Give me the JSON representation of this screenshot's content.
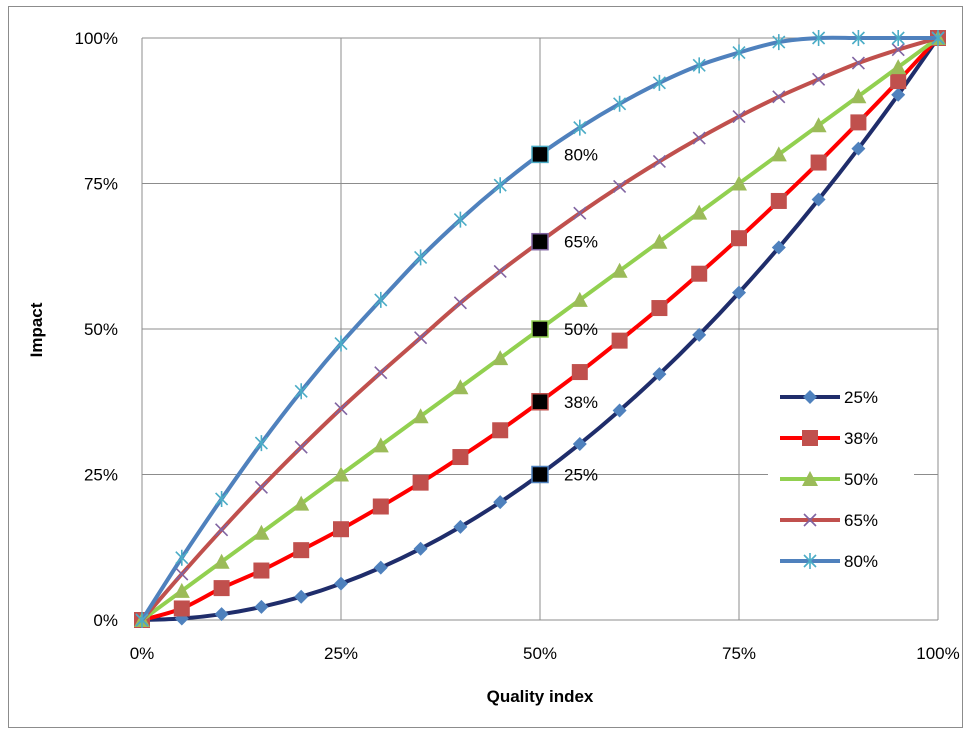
{
  "chart_data": {
    "type": "line",
    "title": "",
    "xlabel": "Quality index",
    "ylabel": "Impact",
    "xlim": [
      0,
      1
    ],
    "ylim": [
      0,
      1
    ],
    "x_ticks": [
      "0%",
      "25%",
      "50%",
      "75%",
      "100%"
    ],
    "y_ticks": [
      "0%",
      "25%",
      "50%",
      "75%",
      "100%"
    ],
    "grid": true,
    "legend_position": "right",
    "x": [
      0,
      0.05,
      0.1,
      0.15,
      0.2,
      0.25,
      0.3,
      0.35,
      0.4,
      0.45,
      0.5,
      0.55,
      0.6,
      0.65,
      0.7,
      0.75,
      0.8,
      0.85,
      0.9,
      0.95,
      1.0
    ],
    "series": [
      {
        "name": "25%",
        "color": "#1F2D6B",
        "marker": "diamond",
        "marker_color": "#4F81BD",
        "values": [
          0,
          0.0025,
          0.01,
          0.0225,
          0.04,
          0.0625,
          0.09,
          0.1225,
          0.16,
          0.2025,
          0.25,
          0.3025,
          0.36,
          0.4225,
          0.49,
          0.5625,
          0.64,
          0.7225,
          0.81,
          0.9025,
          1.0
        ]
      },
      {
        "name": "38%",
        "color": "#FF0000",
        "marker": "square",
        "marker_color": "#C0504D",
        "values": [
          0,
          0.0198,
          0.0548,
          0.085,
          0.12,
          0.156,
          0.195,
          0.236,
          0.28,
          0.326,
          0.375,
          0.426,
          0.48,
          0.536,
          0.595,
          0.656,
          0.72,
          0.786,
          0.855,
          0.926,
          1.0
        ]
      },
      {
        "name": "50%",
        "color": "#92D050",
        "marker": "triangle",
        "marker_color": "#9BBB59",
        "values": [
          0,
          0.05,
          0.1,
          0.15,
          0.2,
          0.25,
          0.3,
          0.35,
          0.4,
          0.45,
          0.5,
          0.55,
          0.6,
          0.65,
          0.7,
          0.75,
          0.8,
          0.85,
          0.9,
          0.95,
          1.0
        ]
      },
      {
        "name": "65%",
        "color": "#C0504D",
        "marker": "x",
        "marker_color": "#8064A2",
        "values": [
          0,
          0.079,
          0.155,
          0.228,
          0.297,
          0.363,
          0.425,
          0.485,
          0.545,
          0.599,
          0.65,
          0.699,
          0.745,
          0.788,
          0.828,
          0.865,
          0.899,
          0.929,
          0.957,
          0.98,
          1.0
        ]
      },
      {
        "name": "80%",
        "color": "#4F81BD",
        "marker": "asterisk",
        "marker_color": "#4BACC6",
        "values": [
          0,
          0.107,
          0.208,
          0.304,
          0.393,
          0.475,
          0.55,
          0.623,
          0.688,
          0.747,
          0.8,
          0.846,
          0.887,
          0.923,
          0.953,
          0.975,
          0.993,
          1.0,
          1.0,
          1.0,
          1.0
        ]
      }
    ],
    "annotations": [
      {
        "x": 0.5,
        "y": 0.8,
        "label": "80%",
        "marker_color": "#4BACC6"
      },
      {
        "x": 0.5,
        "y": 0.65,
        "label": "65%",
        "marker_color": "#8064A2"
      },
      {
        "x": 0.5,
        "y": 0.5,
        "label": "50%",
        "marker_color": "#92D050"
      },
      {
        "x": 0.5,
        "y": 0.375,
        "label": "38%",
        "marker_color": "#C0504D"
      },
      {
        "x": 0.5,
        "y": 0.25,
        "label": "25%",
        "marker_color": "#4F81BD"
      }
    ]
  }
}
